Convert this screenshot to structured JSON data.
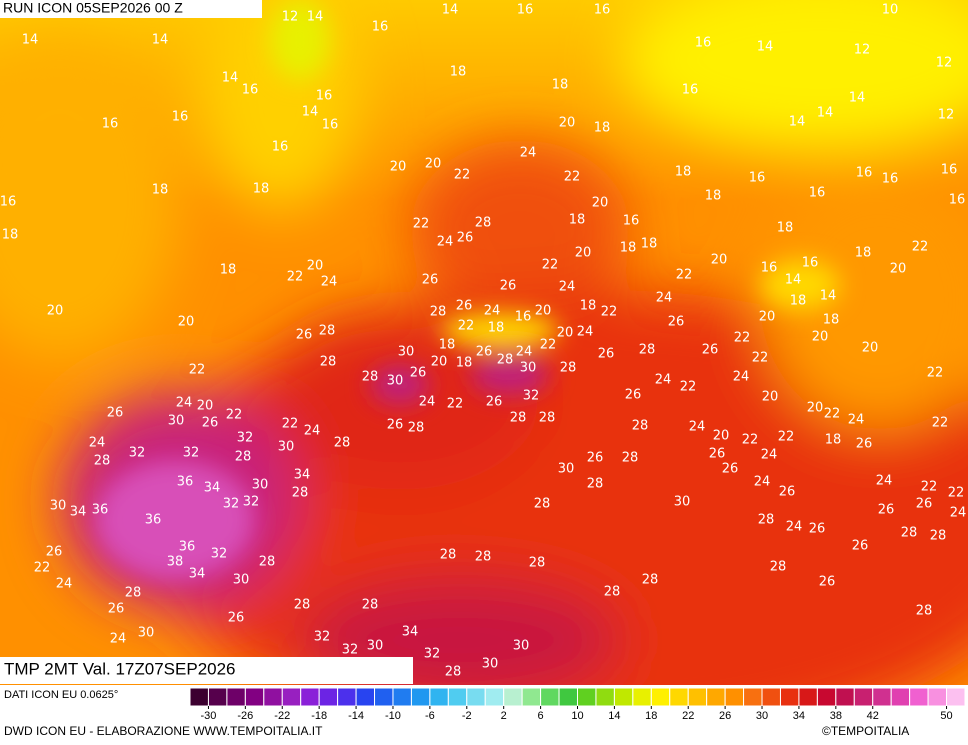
{
  "header": {
    "run": "RUN ICON 05SEP2026 00 Z",
    "valid": "TMP 2MT Val. 17Z07SEP2026"
  },
  "footer": {
    "data_source": "DATI ICON EU 0.0625°",
    "credit": "DWD ICON EU - ELABORAZIONE WWW.TEMPOITALIA.IT",
    "copyright": "©TEMPOITALIA"
  },
  "colorbar": {
    "range": [
      -32,
      52
    ],
    "ticks": [
      -30,
      -26,
      -22,
      -18,
      -14,
      -10,
      -6,
      -2,
      2,
      6,
      10,
      14,
      18,
      22,
      26,
      30,
      34,
      38,
      42,
      50
    ],
    "colors": [
      "#3c0030",
      "#56004c",
      "#6e0068",
      "#820082",
      "#9010a0",
      "#9820c0",
      "#8a20d8",
      "#6c24e4",
      "#4c30ec",
      "#2844f0",
      "#2060f0",
      "#207cf0",
      "#2098f0",
      "#30b4f0",
      "#50ccf0",
      "#78dcf0",
      "#a0ecf0",
      "#b8f0d0",
      "#90e890",
      "#60d860",
      "#40c840",
      "#60d020",
      "#90dc10",
      "#c0e800",
      "#e8f000",
      "#fff000",
      "#ffd800",
      "#ffc000",
      "#ffa800",
      "#ff9000",
      "#f87010",
      "#f05010",
      "#e83010",
      "#d81818",
      "#c80830",
      "#c01050",
      "#c82070",
      "#d03090",
      "#e040b0",
      "#f060d0",
      "#f890e0",
      "#fcc0f0"
    ]
  },
  "map_labels": [
    14,
    14,
    12,
    14,
    16,
    14,
    16,
    16,
    10,
    16,
    14,
    12,
    12,
    18,
    14,
    16,
    18,
    16,
    14,
    16,
    14,
    16,
    16,
    16,
    14,
    14,
    12,
    20,
    18,
    16,
    24,
    20,
    20,
    22,
    22,
    18,
    16,
    16,
    16,
    16,
    16,
    16,
    18,
    18,
    18,
    20,
    16,
    18,
    28,
    22,
    24,
    26,
    18,
    16,
    18,
    18,
    18,
    22,
    18,
    20,
    18,
    20,
    22,
    24,
    26,
    26,
    22,
    22,
    20,
    16,
    16,
    14,
    20,
    26,
    28,
    24,
    24,
    18,
    22,
    24,
    16,
    20,
    18,
    14,
    20,
    20,
    22,
    18,
    26,
    20,
    18,
    26,
    28,
    20,
    24,
    22,
    20,
    22,
    18,
    30,
    26,
    20,
    18,
    26,
    28,
    24,
    28,
    26,
    26,
    22,
    20,
    28,
    30,
    22,
    28,
    30,
    28,
    24,
    22,
    24,
    22,
    24,
    20,
    22,
    24,
    22,
    26,
    32,
    20,
    20,
    22,
    24,
    22,
    26,
    30,
    26,
    28,
    26,
    28,
    28,
    26,
    22,
    24,
    24,
    20,
    22,
    22,
    18,
    26,
    32,
    30,
    28,
    28,
    24,
    28,
    32,
    32,
    28,
    26,
    24,
    34,
    36,
    34,
    30,
    30,
    26,
    28,
    26,
    24,
    24,
    22,
    28,
    28,
    30,
    34,
    36,
    32,
    32,
    30,
    26,
    22,
    26,
    26,
    24,
    36,
    28,
    28,
    24,
    26,
    28,
    26,
    28,
    26,
    36,
    32,
    38,
    28,
    28,
    28,
    28,
    22,
    34,
    28,
    24,
    30,
    28,
    26,
    28,
    28,
    26,
    28,
    28,
    26,
    28,
    34,
    24,
    30,
    32,
    32,
    30,
    30,
    32,
    30,
    28
  ]
}
